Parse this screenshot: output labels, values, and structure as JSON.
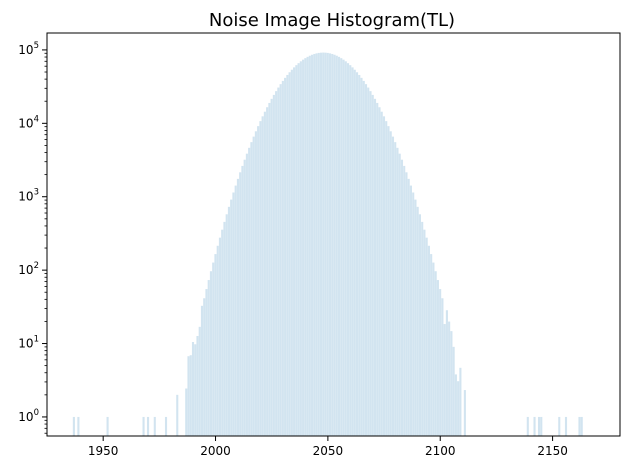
{
  "chart_data": {
    "type": "bar",
    "title": "Noise Image Histogram(TL)",
    "xlabel": "",
    "ylabel": "",
    "xlim": [
      1925,
      2180
    ],
    "ylim": [
      0.55,
      170000
    ],
    "yscale": "log",
    "grid": false,
    "legend": "none",
    "bar_color": "#1f77b4",
    "bar_alpha": 0.2,
    "x_ticks": [
      1950,
      2000,
      2050,
      2100,
      2150
    ],
    "x_tick_labels": [
      "1950",
      "2000",
      "2050",
      "2100",
      "2150"
    ],
    "y_ticks": [
      1,
      10,
      100,
      1000,
      10000,
      100000
    ],
    "y_tick_labels": [
      {
        "base": "10",
        "exp": "0"
      },
      {
        "base": "10",
        "exp": "1"
      },
      {
        "base": "10",
        "exp": "2"
      },
      {
        "base": "10",
        "exp": "3"
      },
      {
        "base": "10",
        "exp": "4"
      },
      {
        "base": "10",
        "exp": "5"
      }
    ],
    "distribution": {
      "shape": "gaussian",
      "center": 2048,
      "peak": 92000,
      "sigma": 13.5
    },
    "bins": {
      "min": 1929,
      "max": 2176,
      "step": 1
    }
  }
}
